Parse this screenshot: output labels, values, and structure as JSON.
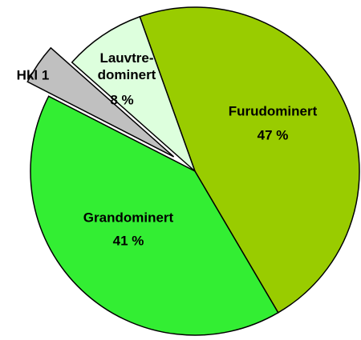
{
  "chart_data": {
    "type": "pie",
    "categories": [
      "Furudominert",
      "Grandominert",
      "Hkl 1",
      "Lauvtre-dominert"
    ],
    "values": [
      47,
      41,
      4,
      8
    ],
    "value_labels": [
      "47 %",
      "41 %",
      null,
      "8 %"
    ],
    "colors": [
      "#99cc00",
      "#33ee33",
      "#c0c0c0",
      "#ddffdd"
    ]
  }
}
